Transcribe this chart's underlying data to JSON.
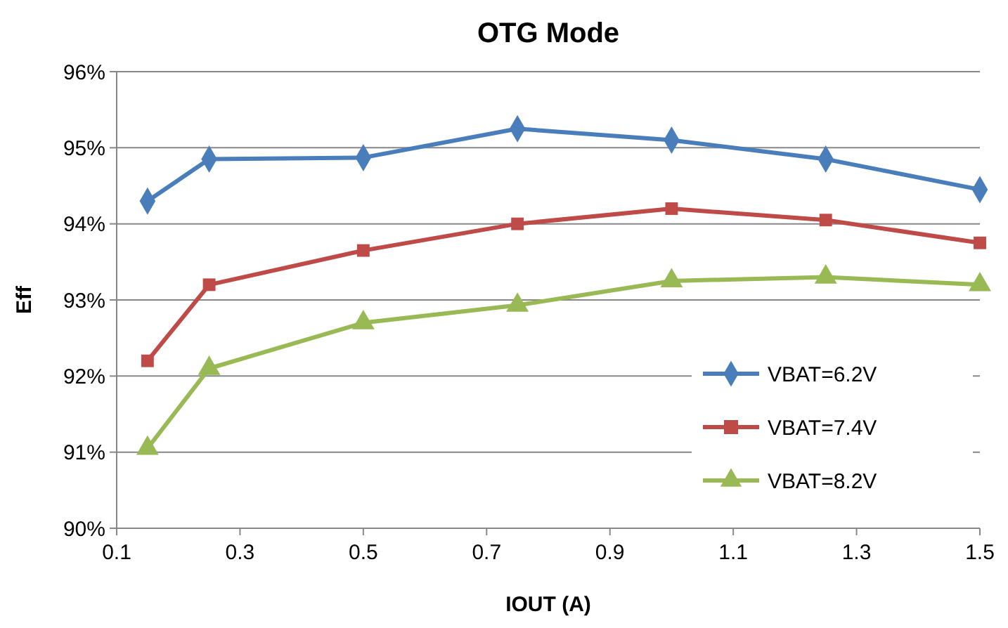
{
  "chart_data": {
    "type": "line",
    "title": "OTG Mode",
    "xlabel": "IOUT (A)",
    "ylabel": "Eff",
    "x": [
      0.15,
      0.25,
      0.5,
      0.75,
      1.0,
      1.25,
      1.5
    ],
    "series": [
      {
        "name": "VBAT=6.2V",
        "color": "#4a7ebb",
        "marker": "diamond",
        "values": [
          94.3,
          94.85,
          94.87,
          95.25,
          95.1,
          94.85,
          94.45
        ]
      },
      {
        "name": "VBAT=7.4V",
        "color": "#be4b48",
        "marker": "square",
        "values": [
          92.2,
          93.2,
          93.65,
          94.0,
          94.2,
          94.05,
          93.75
        ]
      },
      {
        "name": "VBAT=8.2V",
        "color": "#98b954",
        "marker": "triangle",
        "values": [
          91.05,
          92.1,
          92.7,
          92.93,
          93.25,
          93.3,
          93.2
        ]
      }
    ],
    "xlim": [
      0.1,
      1.5
    ],
    "xticks": [
      0.1,
      0.3,
      0.5,
      0.7,
      0.9,
      1.1,
      1.3,
      1.5
    ],
    "ylim": [
      90,
      96
    ],
    "yticks": [
      {
        "value": 90,
        "label": "90%"
      },
      {
        "value": 91,
        "label": "91%"
      },
      {
        "value": 92,
        "label": "92%"
      },
      {
        "value": 93,
        "label": "93%"
      },
      {
        "value": 94,
        "label": "94%"
      },
      {
        "value": 95,
        "label": "95%"
      },
      {
        "value": 96,
        "label": "96%"
      }
    ],
    "grid": "y",
    "legend": "bottom right",
    "line_style": "solid"
  }
}
